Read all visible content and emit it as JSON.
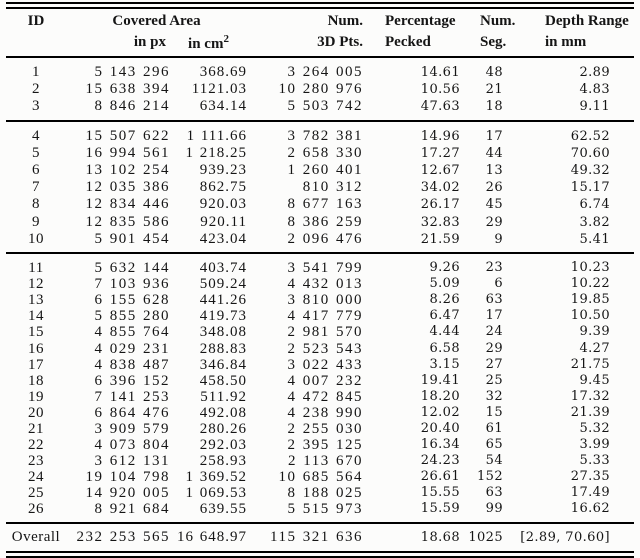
{
  "table": {
    "headers": {
      "id": "ID",
      "covered_area": "Covered Area",
      "in_px": "in px",
      "in_cm": "in cm",
      "cm_sup": "2",
      "num_3d": "Num.",
      "pts_3d": "3D Pts.",
      "percentage": "Percentage",
      "pecked": "Pecked",
      "num_seg": "Num.",
      "seg": "Seg.",
      "depth_range": "Depth Range",
      "in_mm": "in mm"
    },
    "groups": {
      "g1": [
        [
          "1",
          "5 143 296",
          "368.69",
          "3 264 005",
          "14.61",
          "48",
          "2.89"
        ],
        [
          "2",
          "15 638 394",
          "1121.03",
          "10 280 976",
          "10.56",
          "21",
          "4.83"
        ],
        [
          "3",
          "8 846 214",
          "634.14",
          "5 503 742",
          "47.63",
          "18",
          "9.11"
        ]
      ],
      "g2": [
        [
          "4",
          "15 507 622",
          "1 111.66",
          "3 782 381",
          "14.96",
          "17",
          "62.52"
        ],
        [
          "5",
          "16 994 561",
          "1 218.25",
          "2 658 330",
          "17.27",
          "44",
          "70.60"
        ],
        [
          "6",
          "13 102 254",
          "939.23",
          "1 260 401",
          "12.67",
          "13",
          "49.32"
        ],
        [
          "7",
          "12 035 386",
          "862.75",
          "810 312",
          "34.02",
          "26",
          "15.17"
        ],
        [
          "8",
          "12 834 446",
          "920.03",
          "8 677 163",
          "26.17",
          "45",
          "6.74"
        ],
        [
          "9",
          "12 835 586",
          "920.11",
          "8 386 259",
          "32.83",
          "29",
          "3.82"
        ],
        [
          "10",
          "5 901 454",
          "423.04",
          "2 096 476",
          "21.59",
          "9",
          "5.41"
        ]
      ],
      "g3": [
        [
          "11",
          "5 632 144",
          "403.74",
          "3 541 799",
          "9.26",
          "23",
          "10.23"
        ],
        [
          "12",
          "7 103 936",
          "509.24",
          "4 432 013",
          "5.09",
          "6",
          "10.22"
        ],
        [
          "13",
          "6 155 628",
          "441.26",
          "3 810 000",
          "8.26",
          "63",
          "19.85"
        ],
        [
          "14",
          "5 855 280",
          "419.73",
          "4 417 779",
          "6.47",
          "17",
          "10.50"
        ],
        [
          "15",
          "4 855 764",
          "348.08",
          "2 981 570",
          "4.44",
          "24",
          "9.39"
        ],
        [
          "16",
          "4 029 231",
          "288.83",
          "2 523 543",
          "6.58",
          "29",
          "4.27"
        ],
        [
          "17",
          "4 838 487",
          "346.84",
          "3 022 433",
          "3.15",
          "27",
          "21.75"
        ],
        [
          "18",
          "6 396 152",
          "458.50",
          "4 007 232",
          "19.41",
          "25",
          "9.45"
        ],
        [
          "19",
          "7 141 253",
          "511.92",
          "4 472 845",
          "18.20",
          "32",
          "17.32"
        ],
        [
          "20",
          "6 864 476",
          "492.08",
          "4 238 990",
          "12.02",
          "15",
          "21.39"
        ],
        [
          "21",
          "3 909 579",
          "280.26",
          "2 255 030",
          "20.40",
          "61",
          "5.32"
        ],
        [
          "22",
          "4 073 804",
          "292.03",
          "2 395 125",
          "16.34",
          "65",
          "3.99"
        ],
        [
          "23",
          "3 612 131",
          "258.93",
          "2 113 670",
          "24.23",
          "54",
          "5.33"
        ],
        [
          "24",
          "19 104 798",
          "1 369.52",
          "10 685 564",
          "26.61",
          "152",
          "27.35"
        ],
        [
          "25",
          "14 920 005",
          "1 069.53",
          "8 188 025",
          "15.55",
          "63",
          "17.49"
        ],
        [
          "26",
          "8 921 684",
          "639.55",
          "5 515 973",
          "15.59",
          "99",
          "16.62"
        ]
      ]
    },
    "overall": [
      [
        "Overall",
        "232 253 565",
        "16 648.97",
        "115 321 636",
        "18.68",
        "1025",
        "[2.89, 70.60]"
      ]
    ]
  }
}
